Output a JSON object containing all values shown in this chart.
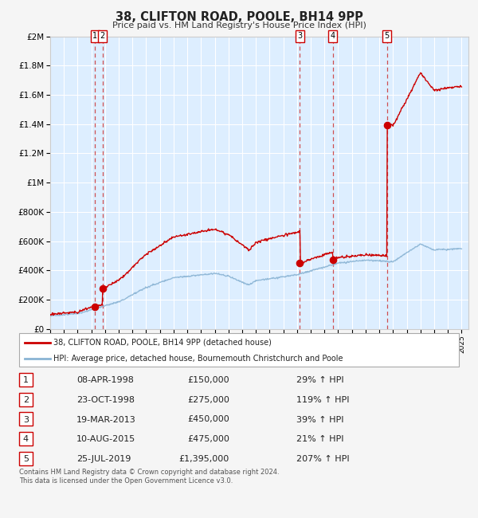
{
  "title": "38, CLIFTON ROAD, POOLE, BH14 9PP",
  "subtitle": "Price paid vs. HM Land Registry's House Price Index (HPI)",
  "footer": "Contains HM Land Registry data © Crown copyright and database right 2024.\nThis data is licensed under the Open Government Licence v3.0.",
  "legend_line1": "38, CLIFTON ROAD, POOLE, BH14 9PP (detached house)",
  "legend_line2": "HPI: Average price, detached house, Bournemouth Christchurch and Poole",
  "sales": [
    {
      "num": 1,
      "date_label": "08-APR-1998",
      "price": 150000,
      "pct": "29%",
      "x_year": 1998.27
    },
    {
      "num": 2,
      "date_label": "23-OCT-1998",
      "price": 275000,
      "pct": "119%",
      "x_year": 1998.81
    },
    {
      "num": 3,
      "date_label": "19-MAR-2013",
      "price": 450000,
      "pct": "39%",
      "x_year": 2013.21
    },
    {
      "num": 4,
      "date_label": "10-AUG-2015",
      "price": 475000,
      "pct": "21%",
      "x_year": 2015.61
    },
    {
      "num": 5,
      "date_label": "25-JUL-2019",
      "price": 1395000,
      "pct": "207%",
      "x_year": 2019.56
    }
  ],
  "hpi_color": "#8ab4d4",
  "price_color": "#cc0000",
  "sale_dot_color": "#cc0000",
  "dashed_line_color": "#cc3333",
  "fig_bg_color": "#f5f5f5",
  "plot_bg_color": "#ddeeff",
  "grid_color": "#ffffff",
  "label_box_color": "#ffffff",
  "label_box_edge": "#cc0000",
  "ylim": [
    0,
    2000000
  ],
  "xlim_start": 1995,
  "xlim_end": 2025.5,
  "yticks": [
    0,
    200000,
    400000,
    600000,
    800000,
    1000000,
    1200000,
    1400000,
    1600000,
    1800000,
    2000000
  ],
  "ytick_labels": [
    "£0",
    "£200K",
    "£400K",
    "£600K",
    "£800K",
    "£1M",
    "£1.2M",
    "£1.4M",
    "£1.6M",
    "£1.8M",
    "£2M"
  ]
}
